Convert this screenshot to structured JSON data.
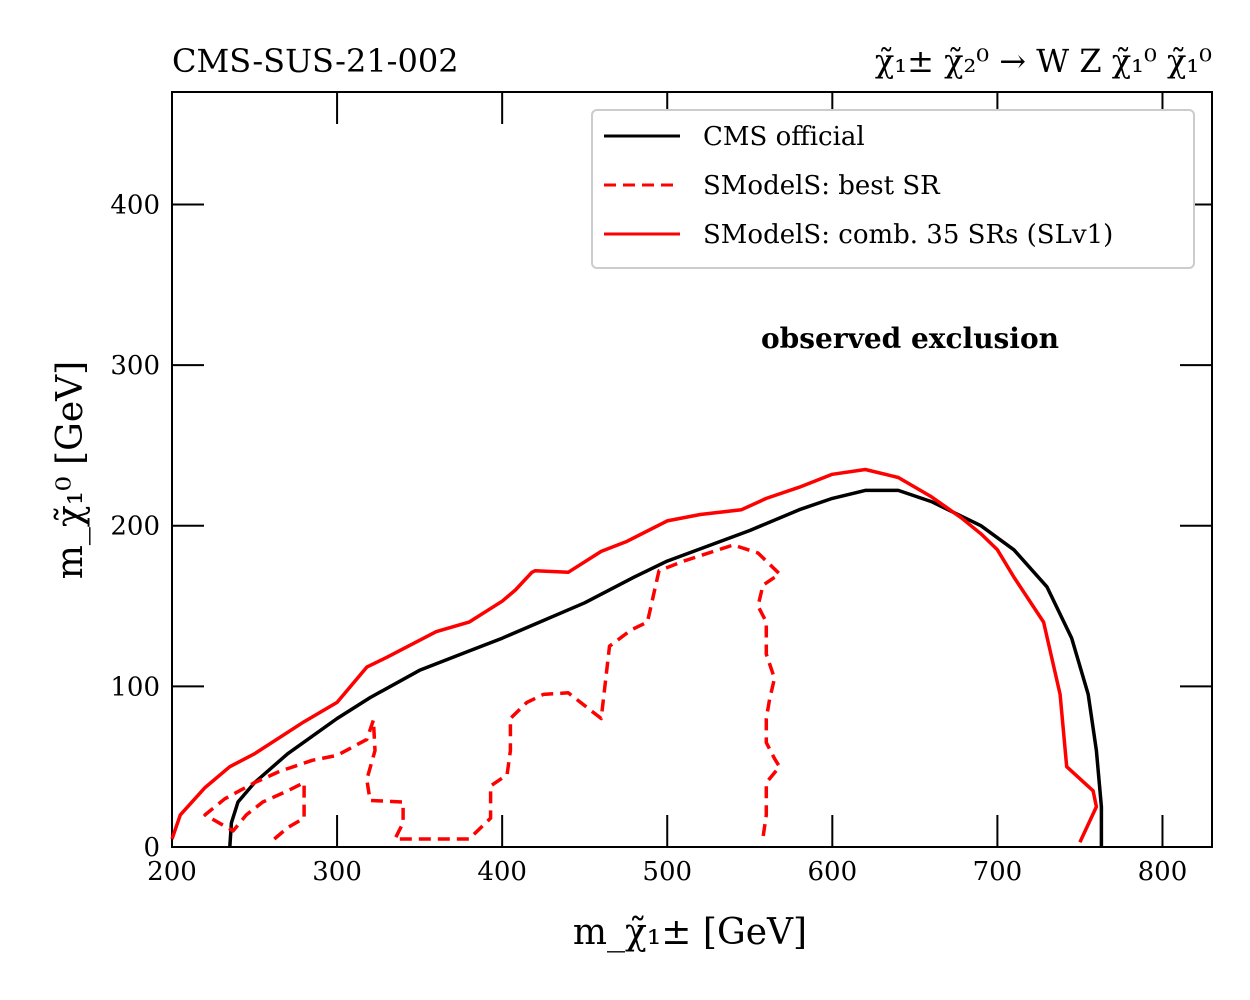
{
  "header": {
    "left_title": "CMS-SUS-21-002",
    "right_title": "χ̃₁± χ̃₂⁰ → W Z χ̃₁⁰ χ̃₁⁰"
  },
  "chart_data": {
    "type": "line",
    "title": "CMS-SUS-21-002",
    "subtitle": "χ̃₁± χ̃₂⁰ → W Z χ̃₁⁰ χ̃₁⁰",
    "xlabel": "m_χ̃₁± [GeV]",
    "ylabel": "m_χ̃₁⁰ [GeV]",
    "xlim": [
      200,
      830
    ],
    "ylim": [
      0,
      470
    ],
    "xticks": [
      200,
      300,
      400,
      500,
      600,
      700,
      800
    ],
    "yticks": [
      0,
      100,
      200,
      300,
      400
    ],
    "xtick_labels": [
      "200",
      "300",
      "400",
      "500",
      "600",
      "700",
      "800"
    ],
    "ytick_labels": [
      "0",
      "100",
      "200",
      "300",
      "400"
    ],
    "grid": false,
    "legend_position": "top-right",
    "annotation": "observed exclusion",
    "series": [
      {
        "name": "CMS official",
        "color": "#000000",
        "style": "solid",
        "points": [
          [
            235,
            0
          ],
          [
            236,
            15
          ],
          [
            240,
            28
          ],
          [
            250,
            40
          ],
          [
            270,
            58
          ],
          [
            300,
            80
          ],
          [
            320,
            93
          ],
          [
            350,
            110
          ],
          [
            380,
            122
          ],
          [
            400,
            130
          ],
          [
            450,
            152
          ],
          [
            480,
            168
          ],
          [
            500,
            178
          ],
          [
            550,
            197
          ],
          [
            580,
            210
          ],
          [
            600,
            217
          ],
          [
            620,
            222
          ],
          [
            640,
            222
          ],
          [
            660,
            215
          ],
          [
            690,
            200
          ],
          [
            710,
            185
          ],
          [
            730,
            162
          ],
          [
            745,
            130
          ],
          [
            755,
            95
          ],
          [
            760,
            60
          ],
          [
            763,
            25
          ],
          [
            763,
            0
          ]
        ]
      },
      {
        "name": "SModelS: best SR",
        "color": "#ff0000",
        "style": "dashed",
        "segments": [
          [
            [
              262,
              5
            ],
            [
              270,
              12
            ],
            [
              280,
              18
            ],
            [
              280,
              40
            ],
            [
              270,
              35
            ],
            [
              255,
              28
            ],
            [
              245,
              20
            ],
            [
              237,
              10
            ],
            [
              220,
              20
            ],
            [
              232,
              30
            ],
            [
              250,
              40
            ],
            [
              265,
              47
            ],
            [
              285,
              54
            ],
            [
              300,
              57
            ],
            [
              318,
              67
            ],
            [
              322,
              79
            ],
            [
              323,
              60
            ],
            [
              318,
              42
            ],
            [
              320,
              29
            ],
            [
              340,
              28
            ],
            [
              340,
              15
            ],
            [
              335,
              5
            ],
            [
              380,
              5
            ],
            [
              393,
              18
            ],
            [
              393,
              38
            ],
            [
              403,
              45
            ],
            [
              405,
              60
            ],
            [
              405,
              80
            ],
            [
              415,
              90
            ],
            [
              425,
              95
            ],
            [
              440,
              96
            ],
            [
              450,
              88
            ],
            [
              460,
              80
            ],
            [
              465,
              125
            ],
            [
              478,
              135
            ],
            [
              488,
              140
            ],
            [
              495,
              172
            ],
            [
              510,
              178
            ],
            [
              540,
              188
            ],
            [
              555,
              183
            ],
            [
              568,
              170
            ],
            [
              558,
              163
            ],
            [
              555,
              150
            ],
            [
              560,
              140
            ],
            [
              560,
              120
            ],
            [
              565,
              105
            ],
            [
              562,
              92
            ],
            [
              560,
              80
            ],
            [
              560,
              65
            ],
            [
              565,
              55
            ],
            [
              568,
              50
            ],
            [
              560,
              40
            ],
            [
              560,
              20
            ],
            [
              558,
              6
            ]
          ]
        ]
      },
      {
        "name": "SModelS: comb. 35 SRs (SLv1)",
        "color": "#ff0000",
        "style": "solid",
        "points": [
          [
            200,
            5
          ],
          [
            205,
            20
          ],
          [
            220,
            37
          ],
          [
            235,
            50
          ],
          [
            250,
            58
          ],
          [
            280,
            78
          ],
          [
            300,
            90
          ],
          [
            318,
            112
          ],
          [
            330,
            118
          ],
          [
            360,
            134
          ],
          [
            380,
            140
          ],
          [
            400,
            153
          ],
          [
            408,
            160
          ],
          [
            418,
            171
          ],
          [
            420,
            172
          ],
          [
            440,
            171
          ],
          [
            460,
            184
          ],
          [
            475,
            190
          ],
          [
            500,
            203
          ],
          [
            520,
            207
          ],
          [
            545,
            210
          ],
          [
            560,
            217
          ],
          [
            580,
            224
          ],
          [
            600,
            232
          ],
          [
            620,
            235
          ],
          [
            640,
            230
          ],
          [
            660,
            218
          ],
          [
            678,
            205
          ],
          [
            690,
            195
          ],
          [
            700,
            185
          ],
          [
            710,
            168
          ],
          [
            728,
            140
          ],
          [
            738,
            95
          ],
          [
            742,
            50
          ],
          [
            758,
            35
          ],
          [
            760,
            25
          ],
          [
            750,
            3
          ]
        ]
      }
    ]
  }
}
